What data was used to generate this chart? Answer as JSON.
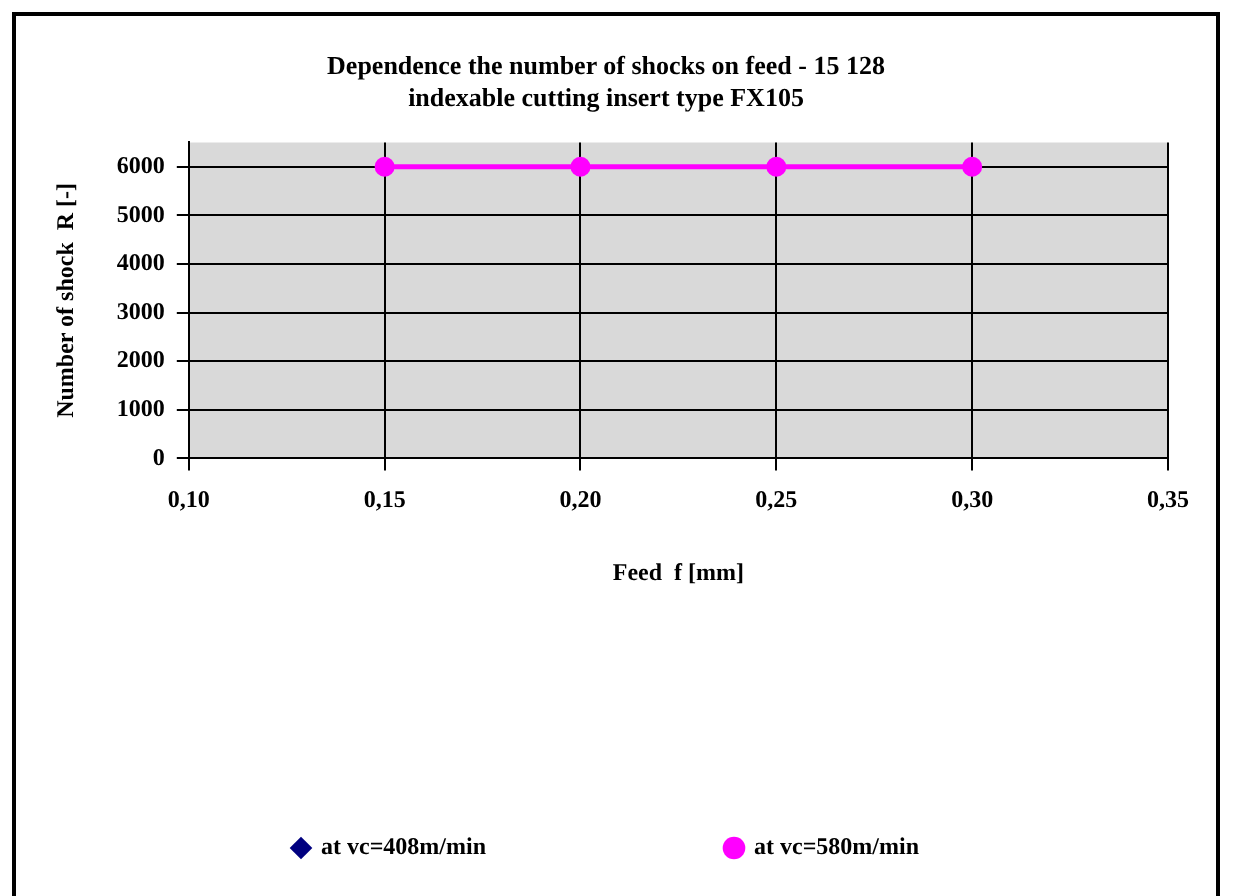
{
  "chart_data": {
    "type": "line",
    "title": "Dependence the number of shocks on feed - 15 128\nindexable cutting insert type FX105",
    "xlabel": "Feed  f [mm]",
    "ylabel": "Number of shock  R [-]",
    "x": [
      0.15,
      0.2,
      0.25,
      0.3
    ],
    "series": [
      {
        "name": "at vc=408m/min",
        "color": "#000080",
        "marker": "diamond",
        "values": [
          null,
          null,
          null,
          null
        ]
      },
      {
        "name": "at vc=580m/min",
        "color": "#ff00ff",
        "marker": "circle",
        "values": [
          6000,
          6000,
          6000,
          6000
        ]
      }
    ],
    "xlim": [
      0.1,
      0.35
    ],
    "xticks": [
      {
        "value": 0.1,
        "label": "0,10"
      },
      {
        "value": 0.15,
        "label": "0,15"
      },
      {
        "value": 0.2,
        "label": "0,20"
      },
      {
        "value": 0.25,
        "label": "0,25"
      },
      {
        "value": 0.3,
        "label": "0,30"
      },
      {
        "value": 0.35,
        "label": "0,35"
      }
    ],
    "ylim": [
      0,
      6500
    ],
    "yticks": [
      0,
      1000,
      2000,
      3000,
      4000,
      5000,
      6000
    ],
    "grid": true,
    "legend": "bottom",
    "line_style": "solid"
  }
}
